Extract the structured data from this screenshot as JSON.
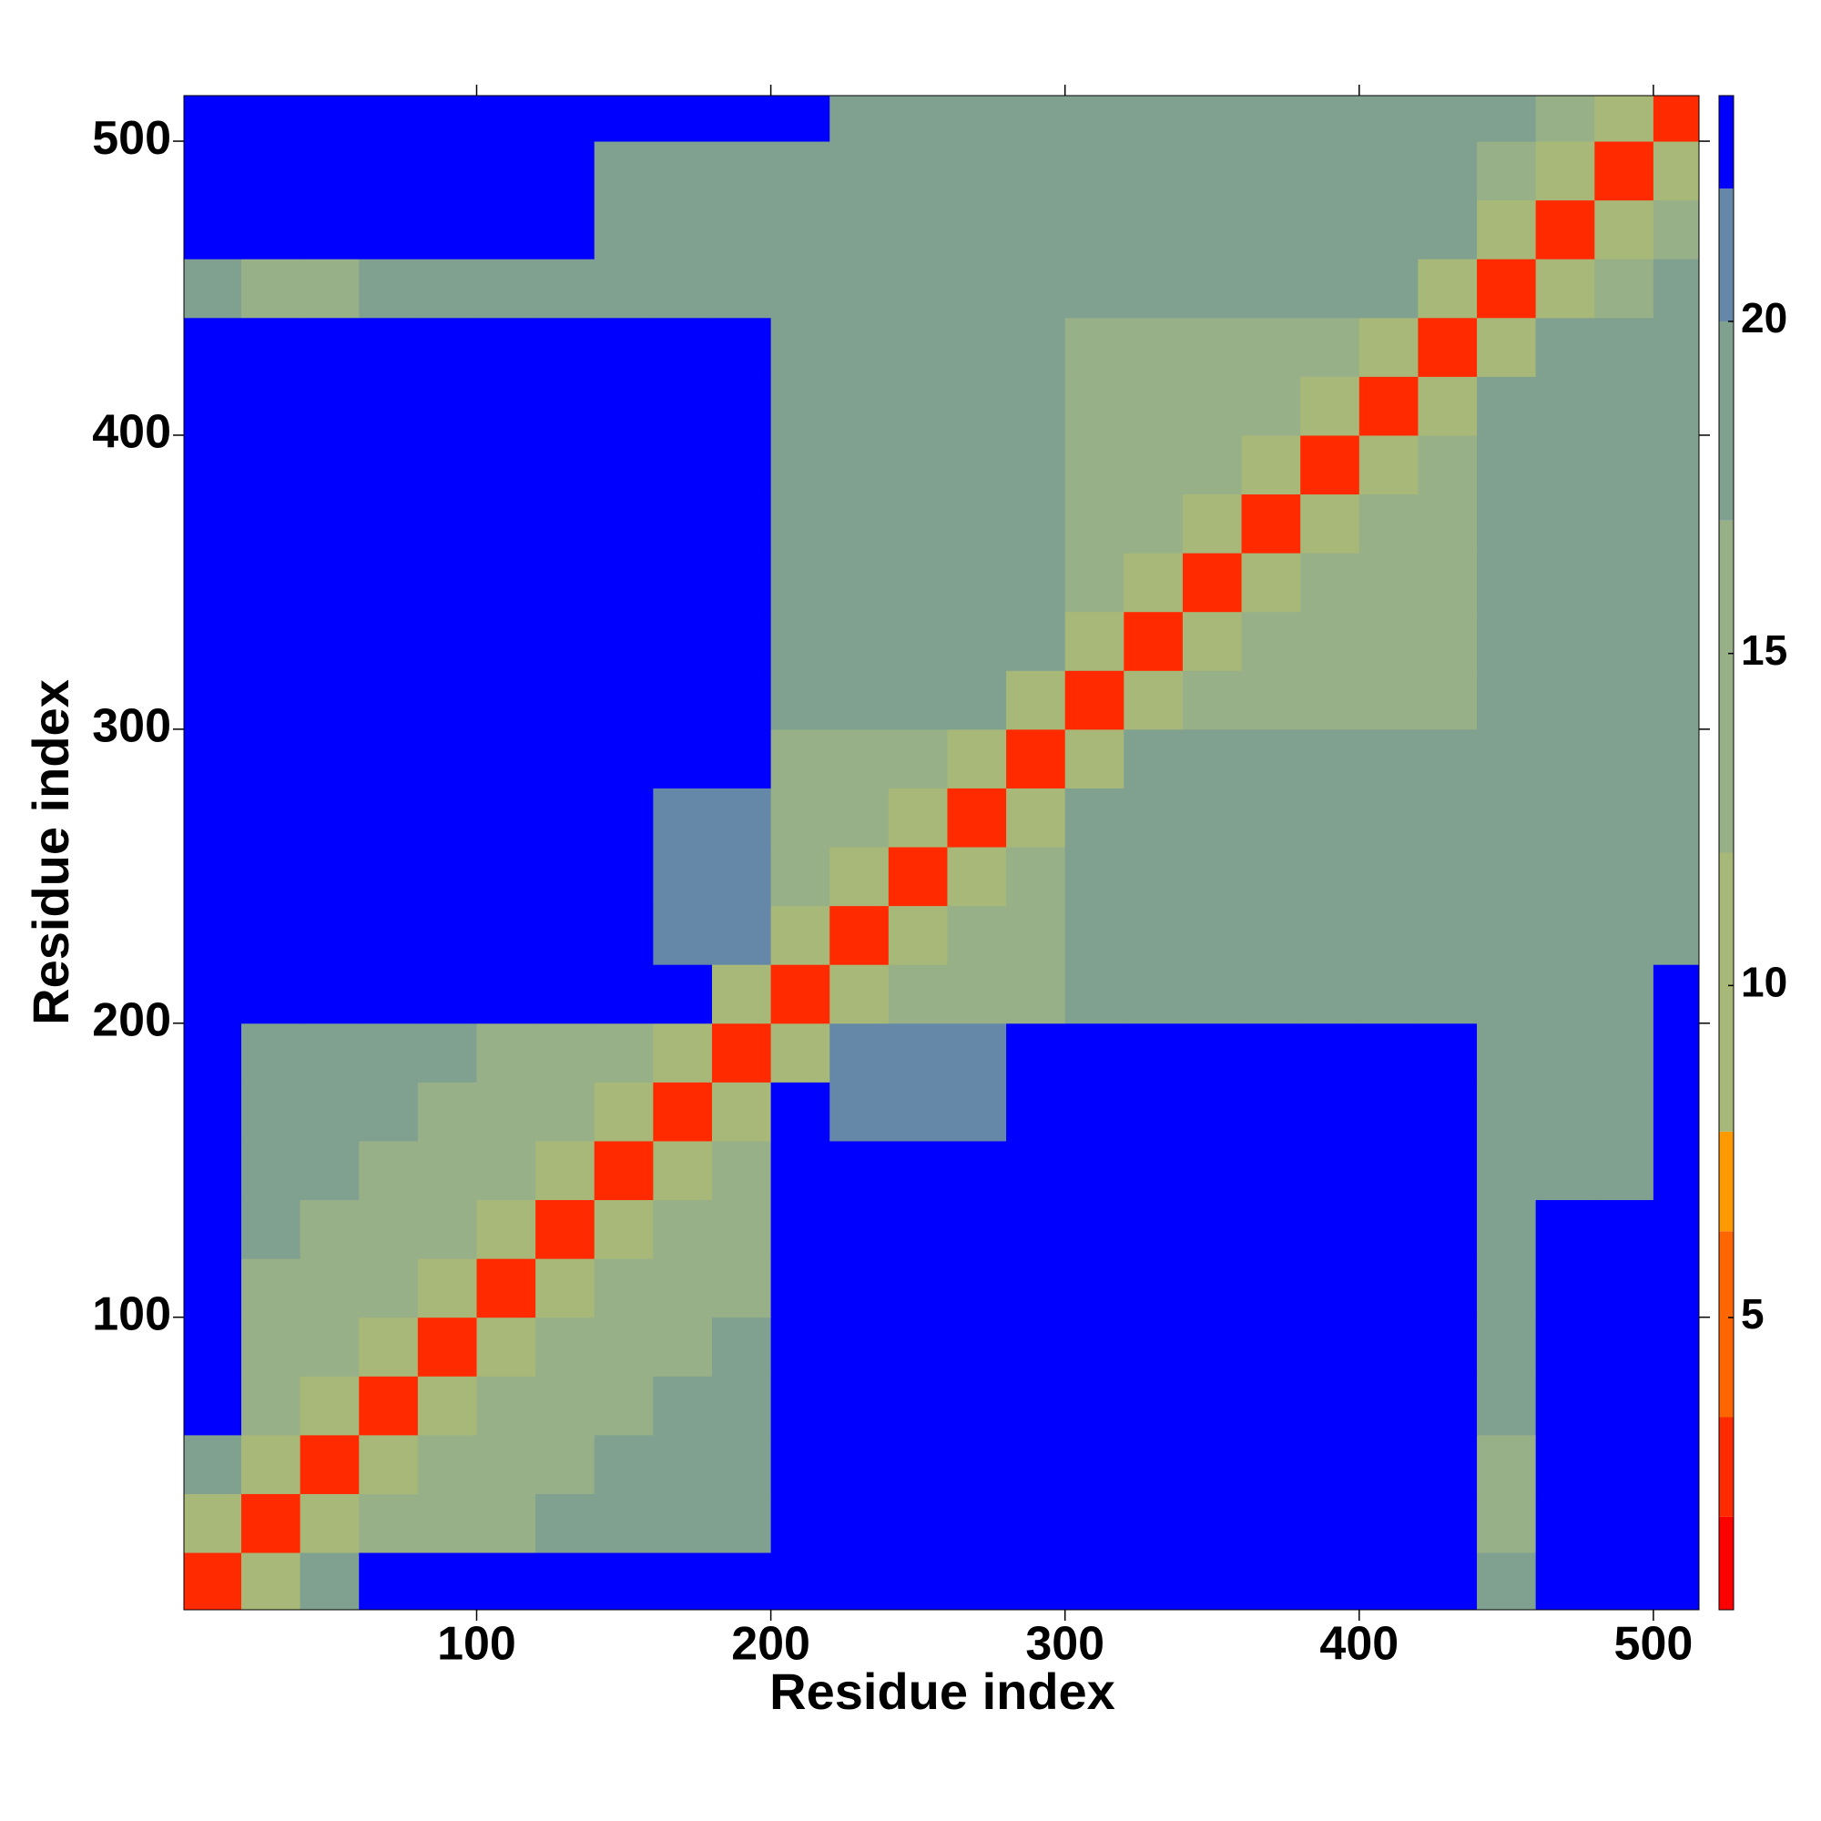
{
  "chart_data": {
    "type": "heatmap",
    "xlabel": "Residue index",
    "ylabel": "Residue index",
    "x": [
      10,
      30,
      50,
      70,
      90,
      110,
      130,
      150,
      170,
      190,
      210,
      230,
      250,
      270,
      290,
      310,
      330,
      350,
      370,
      390,
      410,
      430,
      450,
      470,
      490,
      510
    ],
    "y": [
      10,
      30,
      50,
      70,
      90,
      110,
      130,
      150,
      170,
      190,
      210,
      230,
      250,
      270,
      290,
      310,
      330,
      350,
      370,
      390,
      410,
      430,
      450,
      470,
      490,
      510
    ],
    "z": [
      [
        3,
        10,
        18,
        23,
        23,
        23,
        23,
        23,
        23,
        23,
        23,
        23,
        23,
        23,
        23,
        23,
        23,
        23,
        23,
        23,
        23,
        23,
        18,
        23,
        23,
        23
      ],
      [
        10,
        3,
        10,
        15,
        15,
        15,
        18,
        18,
        18,
        18,
        23,
        23,
        23,
        23,
        23,
        23,
        23,
        23,
        23,
        23,
        23,
        23,
        16,
        23,
        23,
        23
      ],
      [
        18,
        10,
        3,
        10,
        15,
        15,
        15,
        18,
        18,
        18,
        23,
        23,
        23,
        23,
        23,
        23,
        23,
        23,
        23,
        23,
        23,
        23,
        16,
        23,
        23,
        23
      ],
      [
        23,
        15,
        10,
        3,
        10,
        15,
        15,
        15,
        18,
        18,
        23,
        23,
        23,
        23,
        23,
        23,
        23,
        23,
        23,
        23,
        23,
        23,
        19,
        23,
        23,
        23
      ],
      [
        23,
        15,
        15,
        10,
        3,
        10,
        15,
        15,
        15,
        18,
        23,
        23,
        23,
        23,
        23,
        23,
        23,
        23,
        23,
        23,
        23,
        23,
        19,
        23,
        23,
        23
      ],
      [
        23,
        15,
        15,
        15,
        10,
        3,
        10,
        15,
        15,
        15,
        23,
        23,
        23,
        23,
        23,
        23,
        23,
        23,
        23,
        23,
        23,
        23,
        19,
        23,
        23,
        23
      ],
      [
        23,
        18,
        15,
        15,
        15,
        10,
        3,
        10,
        15,
        15,
        23,
        23,
        23,
        23,
        23,
        23,
        23,
        23,
        23,
        23,
        23,
        23,
        19,
        23,
        23,
        23
      ],
      [
        23,
        18,
        18,
        15,
        15,
        15,
        10,
        3,
        10,
        15,
        23,
        23,
        23,
        23,
        23,
        23,
        23,
        23,
        23,
        23,
        23,
        23,
        17,
        17,
        18,
        23
      ],
      [
        23,
        18,
        18,
        18,
        15,
        15,
        15,
        10,
        3,
        10,
        23,
        20,
        20,
        20,
        23,
        23,
        23,
        23,
        23,
        23,
        23,
        23,
        17,
        17,
        18,
        23
      ],
      [
        23,
        18,
        18,
        18,
        18,
        15,
        15,
        15,
        10,
        3,
        10,
        20,
        20,
        20,
        23,
        23,
        23,
        23,
        23,
        23,
        23,
        23,
        17,
        17,
        18,
        23
      ],
      [
        23,
        23,
        23,
        23,
        23,
        23,
        23,
        23,
        23,
        10,
        3,
        10,
        15,
        15,
        15,
        18,
        18,
        18,
        18,
        18,
        18,
        18,
        17,
        17,
        18,
        23
      ],
      [
        23,
        23,
        23,
        23,
        23,
        23,
        23,
        23,
        20,
        20,
        10,
        3,
        10,
        15,
        15,
        18,
        18,
        18,
        18,
        18,
        18,
        18,
        19,
        17,
        17,
        17
      ],
      [
        23,
        23,
        23,
        23,
        23,
        23,
        23,
        23,
        20,
        20,
        15,
        10,
        3,
        10,
        15,
        18,
        18,
        18,
        18,
        18,
        18,
        18,
        19,
        17,
        17,
        17
      ],
      [
        23,
        23,
        23,
        23,
        23,
        23,
        23,
        23,
        20,
        20,
        15,
        15,
        10,
        3,
        10,
        18,
        18,
        18,
        18,
        18,
        18,
        18,
        19,
        17,
        17,
        17
      ],
      [
        23,
        23,
        23,
        23,
        23,
        23,
        23,
        23,
        23,
        23,
        15,
        15,
        15,
        10,
        3,
        10,
        18,
        18,
        18,
        18,
        18,
        18,
        19,
        17,
        17,
        17
      ],
      [
        23,
        23,
        23,
        23,
        23,
        23,
        23,
        23,
        23,
        23,
        18,
        18,
        18,
        18,
        10,
        3,
        10,
        15,
        15,
        15,
        15,
        15,
        19,
        17,
        17,
        17
      ],
      [
        23,
        23,
        23,
        23,
        23,
        23,
        23,
        23,
        23,
        23,
        18,
        18,
        18,
        18,
        18,
        10,
        3,
        10,
        15,
        15,
        15,
        15,
        19,
        17,
        17,
        17
      ],
      [
        23,
        23,
        23,
        23,
        23,
        23,
        23,
        23,
        23,
        23,
        18,
        18,
        18,
        18,
        18,
        15,
        10,
        3,
        10,
        15,
        15,
        15,
        19,
        17,
        17,
        17
      ],
      [
        23,
        23,
        23,
        23,
        23,
        23,
        23,
        23,
        23,
        23,
        18,
        18,
        18,
        18,
        18,
        15,
        15,
        10,
        3,
        10,
        15,
        15,
        19,
        17,
        17,
        17
      ],
      [
        23,
        23,
        23,
        23,
        23,
        23,
        23,
        23,
        23,
        23,
        18,
        18,
        18,
        18,
        18,
        15,
        15,
        15,
        10,
        3,
        10,
        15,
        19,
        17,
        17,
        17
      ],
      [
        23,
        23,
        23,
        23,
        23,
        23,
        23,
        23,
        23,
        23,
        18,
        18,
        18,
        18,
        18,
        15,
        15,
        15,
        15,
        10,
        3,
        10,
        19,
        17,
        17,
        17
      ],
      [
        23,
        23,
        23,
        23,
        23,
        23,
        23,
        23,
        23,
        23,
        18,
        18,
        18,
        18,
        18,
        15,
        15,
        15,
        15,
        15,
        10,
        3,
        10,
        17,
        17,
        17
      ],
      [
        18,
        16,
        16,
        19,
        19,
        19,
        19,
        17,
        17,
        17,
        17,
        19,
        19,
        19,
        19,
        19,
        19,
        19,
        19,
        19,
        19,
        10,
        3,
        10,
        15,
        18
      ],
      [
        23,
        23,
        23,
        23,
        23,
        23,
        23,
        17,
        17,
        17,
        17,
        17,
        17,
        17,
        17,
        17,
        17,
        17,
        17,
        17,
        17,
        17,
        10,
        3,
        10,
        15
      ],
      [
        23,
        23,
        23,
        23,
        23,
        23,
        23,
        18,
        18,
        18,
        18,
        17,
        17,
        17,
        17,
        17,
        17,
        17,
        17,
        17,
        17,
        17,
        15,
        10,
        3,
        10
      ],
      [
        23,
        23,
        23,
        23,
        23,
        23,
        23,
        23,
        23,
        23,
        23,
        17,
        17,
        17,
        17,
        17,
        17,
        17,
        17,
        17,
        17,
        17,
        18,
        15,
        10,
        3
      ]
    ],
    "xlim": [
      0.5,
      515.5
    ],
    "ylim": [
      0.5,
      515.5
    ],
    "xticks": [
      100,
      200,
      300,
      400,
      500
    ],
    "yticks": [
      100,
      200,
      300,
      400,
      500
    ],
    "clim": [
      0.6,
      23.4
    ],
    "cticks": [
      5,
      10,
      15,
      20
    ],
    "colorscale": [
      [
        0.6,
        "#ff0000"
      ],
      [
        2.0,
        "#ff2a00"
      ],
      [
        3.5,
        "#ff6600"
      ],
      [
        6.3,
        "#ff9900"
      ],
      [
        7.8,
        "#a8b878"
      ],
      [
        12,
        "#98b088"
      ],
      [
        17,
        "#80a090"
      ],
      [
        20,
        "#6688a8"
      ],
      [
        22,
        "#0000ff"
      ]
    ]
  }
}
